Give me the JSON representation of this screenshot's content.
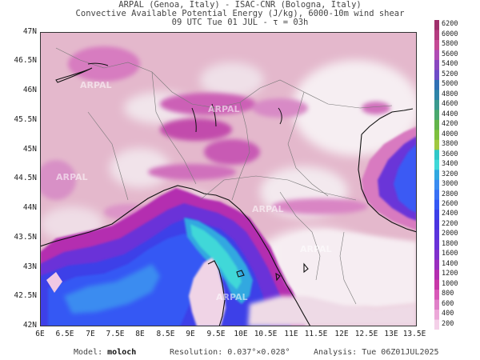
{
  "header": {
    "line1": "ARPAL (Genoa, Italy)  -  ISAC-CNR (Bologna, Italy)",
    "line2": "Convective Available Potential Energy (J/kg), 6000-10m wind shear",
    "line3": "09 UTC Tue 01 JUL  -  τ = 03h"
  },
  "axes": {
    "lat_labels": [
      "47N",
      "46.5N",
      "46N",
      "45.5N",
      "45N",
      "44.5N",
      "44N",
      "43.5N",
      "43N",
      "42.5N",
      "42N"
    ],
    "lon_labels": [
      "6E",
      "6.5E",
      "7E",
      "7.5E",
      "8E",
      "8.5E",
      "9E",
      "9.5E",
      "10E",
      "10.5E",
      "11E",
      "11.5E",
      "12E",
      "12.5E",
      "13E",
      "13.5E"
    ]
  },
  "colorbar": {
    "labels": [
      "6200",
      "6000",
      "5800",
      "5600",
      "5400",
      "5200",
      "5000",
      "4800",
      "4600",
      "4400",
      "4200",
      "4000",
      "3800",
      "3600",
      "3400",
      "3200",
      "3000",
      "2800",
      "2600",
      "2400",
      "2200",
      "2000",
      "1800",
      "1600",
      "1400",
      "1200",
      "1000",
      "800",
      "600",
      "400",
      "200"
    ],
    "colors": [
      "#a0306c",
      "#b43c80",
      "#c44a94",
      "#b04cb4",
      "#8a48c0",
      "#6e4cc8",
      "#3070b4",
      "#2e84a8",
      "#3a9a8e",
      "#4aa86e",
      "#62b44a",
      "#7ec03e",
      "#a0c840",
      "#30c8c8",
      "#40d8d8",
      "#30a8e0",
      "#3a8cf0",
      "#3870f4",
      "#3458f4",
      "#3c40e8",
      "#4a34e0",
      "#5a34dc",
      "#6a32d8",
      "#8030cc",
      "#9a2ebe",
      "#b42eb0",
      "#c838a8",
      "#d858b8",
      "#e080c8",
      "#eca8d8",
      "#f4d0e8"
    ]
  },
  "watermarks": [
    "ARPAL",
    "ARPAL",
    "ARPAL",
    "ARPAL",
    "ARPAL",
    "ARPAL"
  ],
  "footer": {
    "model_label": "Model:",
    "model_value": "moloch",
    "resolution_label": "Resolution:",
    "resolution_value": "0.037°×0.028°",
    "analysis_label": "Analysis:",
    "analysis_value": "Tue 06Z01JUL2025"
  }
}
